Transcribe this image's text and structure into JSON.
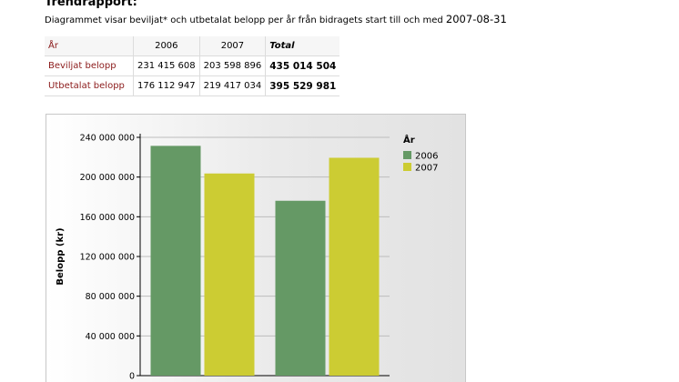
{
  "header": {
    "title": "Trendrapport:",
    "subtitle": "Diagrammet visar beviljat* och utbetalat belopp per år från bidragets start till och med",
    "date": "2007-08-31"
  },
  "table": {
    "corner_label": "År",
    "columns": [
      "2006",
      "2007",
      "Total"
    ],
    "rows": [
      {
        "label": "Beviljat belopp",
        "values": [
          "231 415 608",
          "203 598 896"
        ],
        "total": "435 014 504"
      },
      {
        "label": "Utbetalat belopp",
        "values": [
          "176 112 947",
          "219 417 034"
        ],
        "total": "395 529 981"
      }
    ]
  },
  "colors": {
    "s2006": "#659965",
    "s2007": "#cccc33",
    "label_red": "#8b1a1a"
  },
  "chart_data": {
    "type": "bar",
    "categories": [
      "Beviljat belopp",
      "Utbetalat belopp"
    ],
    "series": [
      {
        "name": "2006",
        "values": [
          231415608,
          176112947
        ]
      },
      {
        "name": "2007",
        "values": [
          203598896,
          219417034
        ]
      }
    ],
    "ylabel": "Belopp (kr)",
    "ylim": [
      0,
      240000000
    ],
    "yticks": [
      0,
      40000000,
      80000000,
      120000000,
      160000000,
      200000000,
      240000000
    ],
    "ytick_labels": [
      "0",
      "40 000 000",
      "80 000 000",
      "120 000 000",
      "160 000 000",
      "200 000 000",
      "240 000 000"
    ],
    "legend_title": "År",
    "legend_position": "top-right",
    "grid": true
  }
}
